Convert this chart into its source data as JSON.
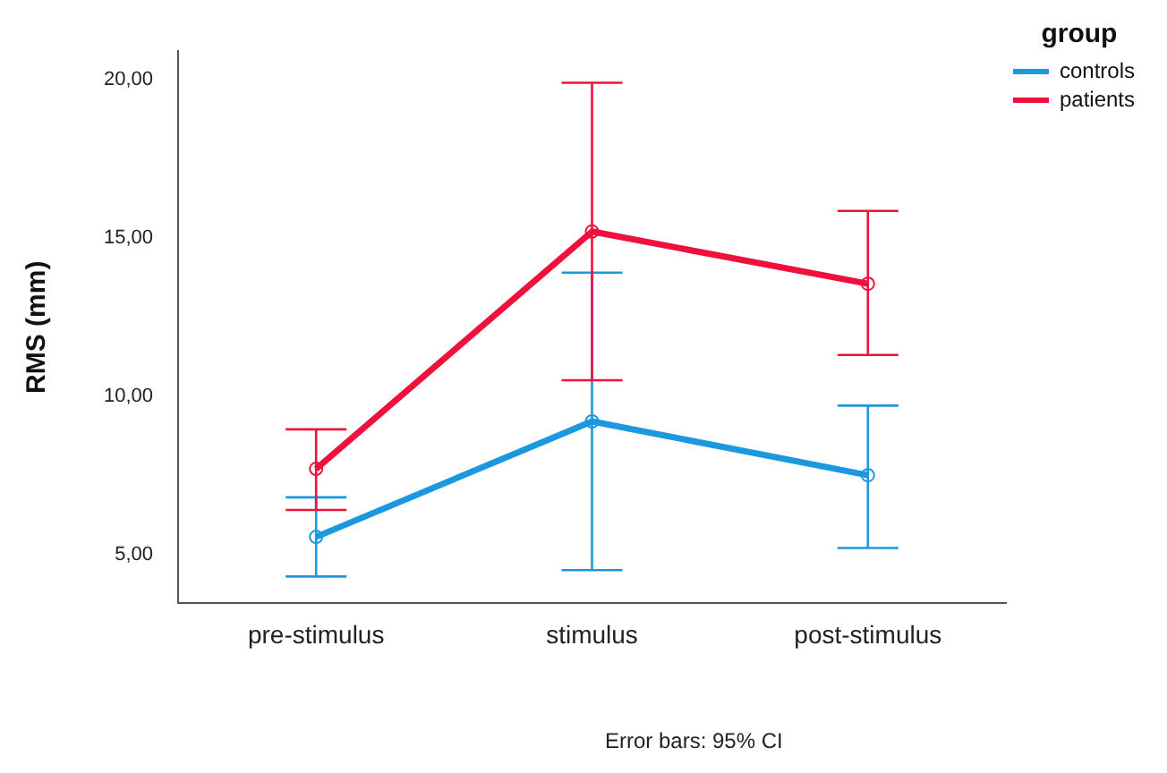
{
  "chart_data": {
    "type": "line",
    "ylabel": "RMS (mm)",
    "legend_title": "group",
    "legend": "top right",
    "marker": "circle",
    "line_style": "solid",
    "grid": false,
    "categories": [
      "pre-stimulus",
      "stimulus",
      "post-stimulus"
    ],
    "ylim": [
      3.45,
      20.9
    ],
    "yticks": [
      {
        "value": 5,
        "label": "5,00"
      },
      {
        "value": 10,
        "label": "10,00"
      },
      {
        "value": 15,
        "label": "15,00"
      },
      {
        "value": 20,
        "label": "20,00"
      }
    ],
    "series": [
      {
        "name": "controls",
        "color": "#1b98e0",
        "values": [
          5.55,
          9.2,
          7.5
        ],
        "errors": [
          [
            4.3,
            6.8
          ],
          [
            4.5,
            13.9
          ],
          [
            5.2,
            9.7
          ]
        ]
      },
      {
        "name": "patients",
        "color": "#f0103c",
        "values": [
          7.7,
          15.2,
          13.55
        ],
        "errors": [
          [
            6.4,
            8.95
          ],
          [
            10.5,
            19.9
          ],
          [
            11.3,
            15.85
          ]
        ]
      }
    ],
    "annotations": [
      "Error bars: 95% CI"
    ]
  }
}
